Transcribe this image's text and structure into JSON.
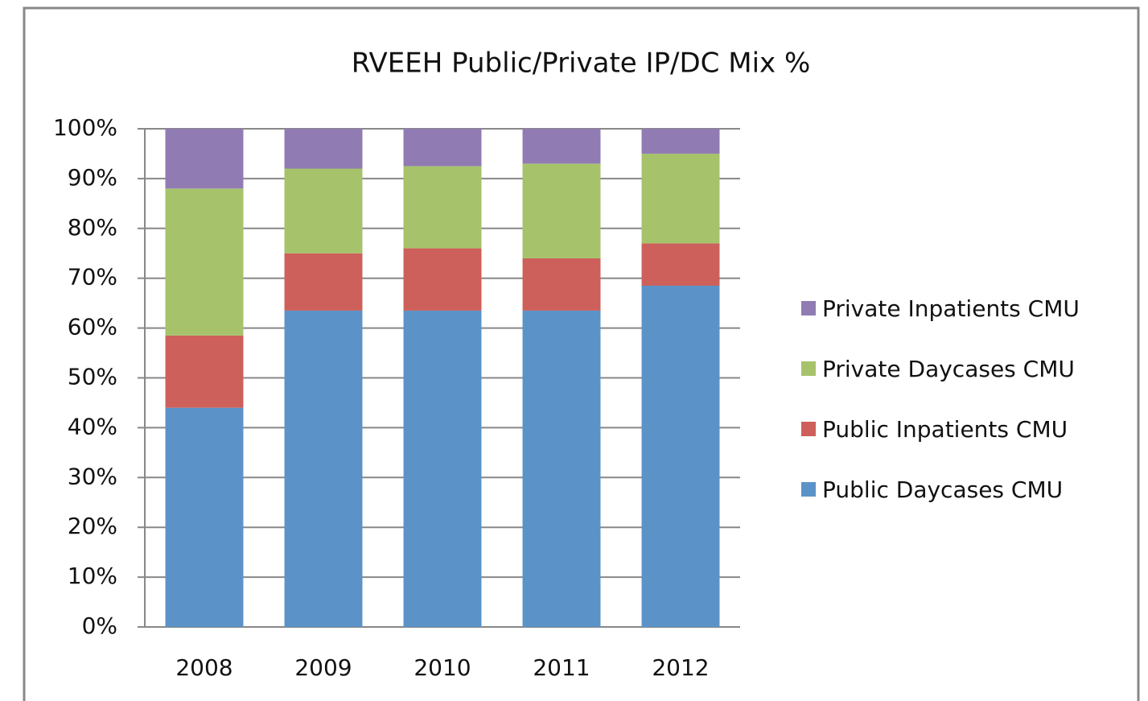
{
  "chart_data": {
    "type": "stacked_bar",
    "title": "RVEEH Public/Private IP/DC Mix %",
    "categories": [
      "2008",
      "2009",
      "2010",
      "2011",
      "2012"
    ],
    "series": [
      {
        "name": "Public Daycases CMU",
        "color": "#5b93c9",
        "values": [
          44,
          63.5,
          63.5,
          63.5,
          68.5
        ]
      },
      {
        "name": "Public Inpatients CMU",
        "color": "#cd605a",
        "values": [
          14.5,
          11.5,
          12.5,
          10.5,
          8.5
        ]
      },
      {
        "name": "Private Daycases CMU",
        "color": "#a6c36b",
        "values": [
          29.5,
          17,
          16.5,
          19,
          18
        ]
      },
      {
        "name": "Private Inpatients CMU",
        "color": "#917bb3",
        "values": [
          12,
          8,
          7.5,
          7,
          5
        ]
      }
    ],
    "ylim": [
      0,
      100
    ],
    "yticks": [
      {
        "value": 0,
        "label": "0%"
      },
      {
        "value": 10,
        "label": "10%"
      },
      {
        "value": 20,
        "label": "20%"
      },
      {
        "value": 30,
        "label": "30%"
      },
      {
        "value": 40,
        "label": "40%"
      },
      {
        "value": 50,
        "label": "50%"
      },
      {
        "value": 60,
        "label": "60%"
      },
      {
        "value": 70,
        "label": "70%"
      },
      {
        "value": 80,
        "label": "80%"
      },
      {
        "value": 90,
        "label": "90%"
      },
      {
        "value": 100,
        "label": "100%"
      }
    ],
    "grid": true,
    "legend": "right"
  }
}
